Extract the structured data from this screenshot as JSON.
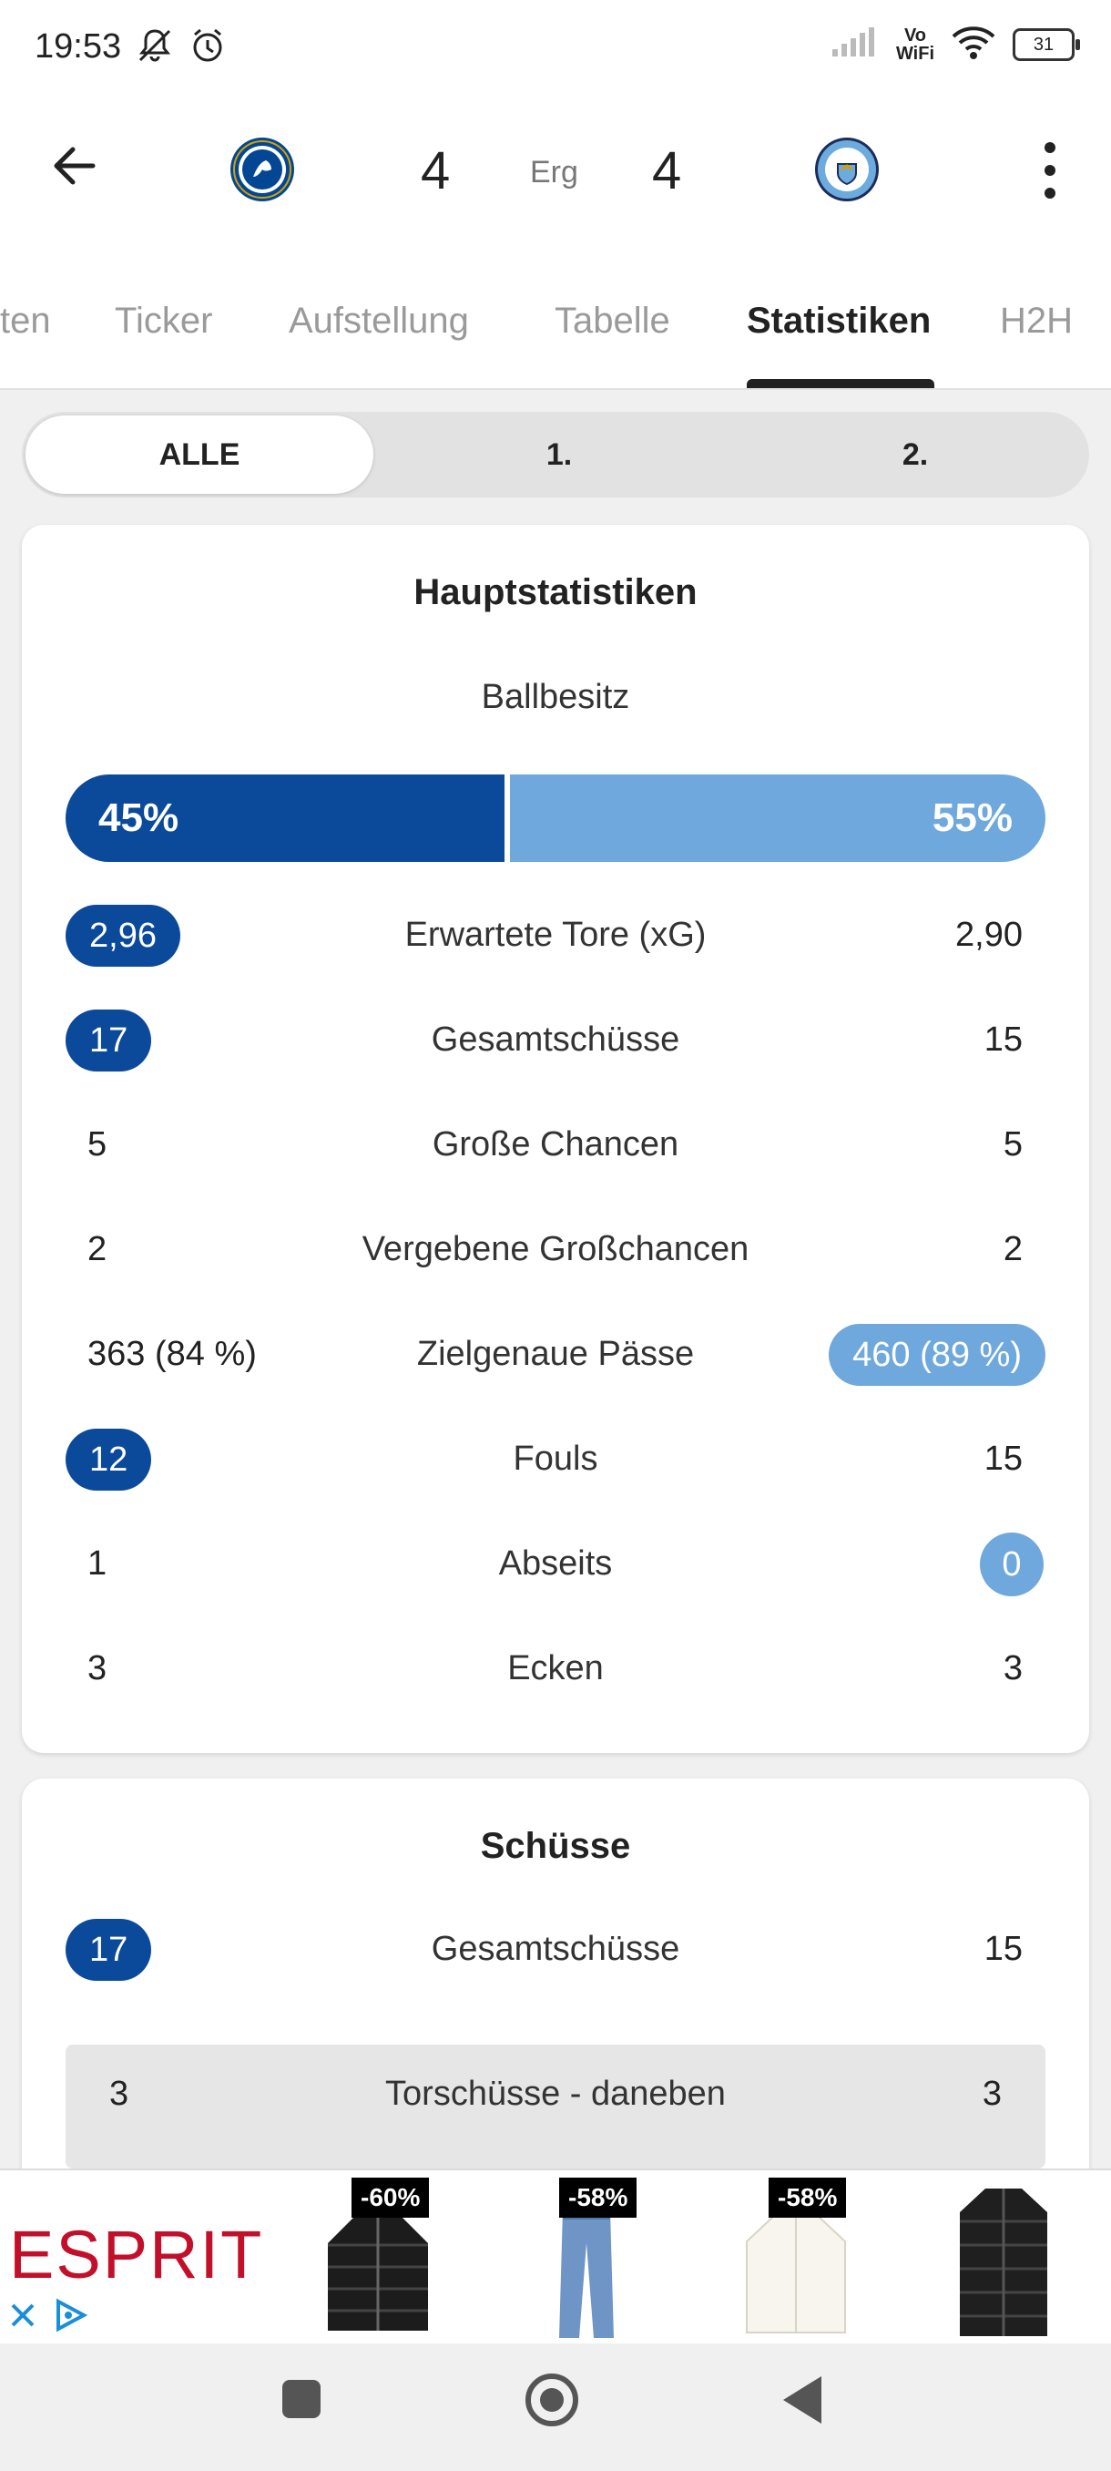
{
  "status_bar": {
    "time": "19:53",
    "icons": [
      "mute-notifications-icon",
      "alarm-icon",
      "signal-icon",
      "vowifi-icon",
      "wifi-icon",
      "battery-icon"
    ],
    "vowifi_top": "Vo",
    "vowifi_bottom": "WiFi",
    "battery": "31"
  },
  "header": {
    "home_score": "4",
    "status": "Erg",
    "away_score": "4",
    "home_crest": "chelsea-crest",
    "away_crest": "manchester-city-crest",
    "colors": {
      "home": "#0b4a9b",
      "away": "#6fa8dc"
    }
  },
  "tabs": [
    {
      "label": "ten"
    },
    {
      "label": "Ticker"
    },
    {
      "label": "Aufstellung"
    },
    {
      "label": "Tabelle"
    },
    {
      "label": "Statistiken",
      "active": true
    },
    {
      "label": "H2H"
    }
  ],
  "period_filter": {
    "options": [
      "ALLE",
      "1.",
      "2."
    ],
    "selected": "ALLE"
  },
  "main_stats": {
    "title": "Hauptstatistiken",
    "possession": {
      "label": "Ballbesitz",
      "home": "45%",
      "away": "55%",
      "home_value": 45,
      "away_value": 55
    },
    "rows": [
      {
        "label": "Erwartete Tore (xG)",
        "home": "2,96",
        "away": "2,90",
        "highlight": "home"
      },
      {
        "label": "Gesamtschüsse",
        "home": "17",
        "away": "15",
        "highlight": "home"
      },
      {
        "label": "Große Chancen",
        "home": "5",
        "away": "5",
        "highlight": "none"
      },
      {
        "label": "Vergebene Großchancen",
        "home": "2",
        "away": "2",
        "highlight": "none"
      },
      {
        "label": "Zielgenaue Pässe",
        "home": "363 (84 %)",
        "away": "460 (89 %)",
        "highlight": "away"
      },
      {
        "label": "Fouls",
        "home": "12",
        "away": "15",
        "highlight": "home"
      },
      {
        "label": "Abseits",
        "home": "1",
        "away": "0",
        "highlight": "away"
      },
      {
        "label": "Ecken",
        "home": "3",
        "away": "3",
        "highlight": "none"
      }
    ]
  },
  "shots": {
    "title": "Schüsse",
    "rows": [
      {
        "label": "Gesamtschüsse",
        "home": "17",
        "away": "15",
        "highlight": "home"
      },
      {
        "label": "Torschüsse - daneben",
        "home": "3",
        "away": "3",
        "highlight": "none"
      }
    ]
  },
  "ad": {
    "brand": "ESPRIT",
    "products": [
      {
        "discount": "-60%",
        "item": "black-puffer-jacket"
      },
      {
        "discount": "-58%",
        "item": "blue-jeans"
      },
      {
        "discount": "-58%",
        "item": "white-cardigan"
      },
      {
        "discount": "",
        "item": "black-long-coat"
      }
    ]
  },
  "navbar": {
    "buttons": [
      "recents-button",
      "home-button",
      "back-button"
    ]
  }
}
